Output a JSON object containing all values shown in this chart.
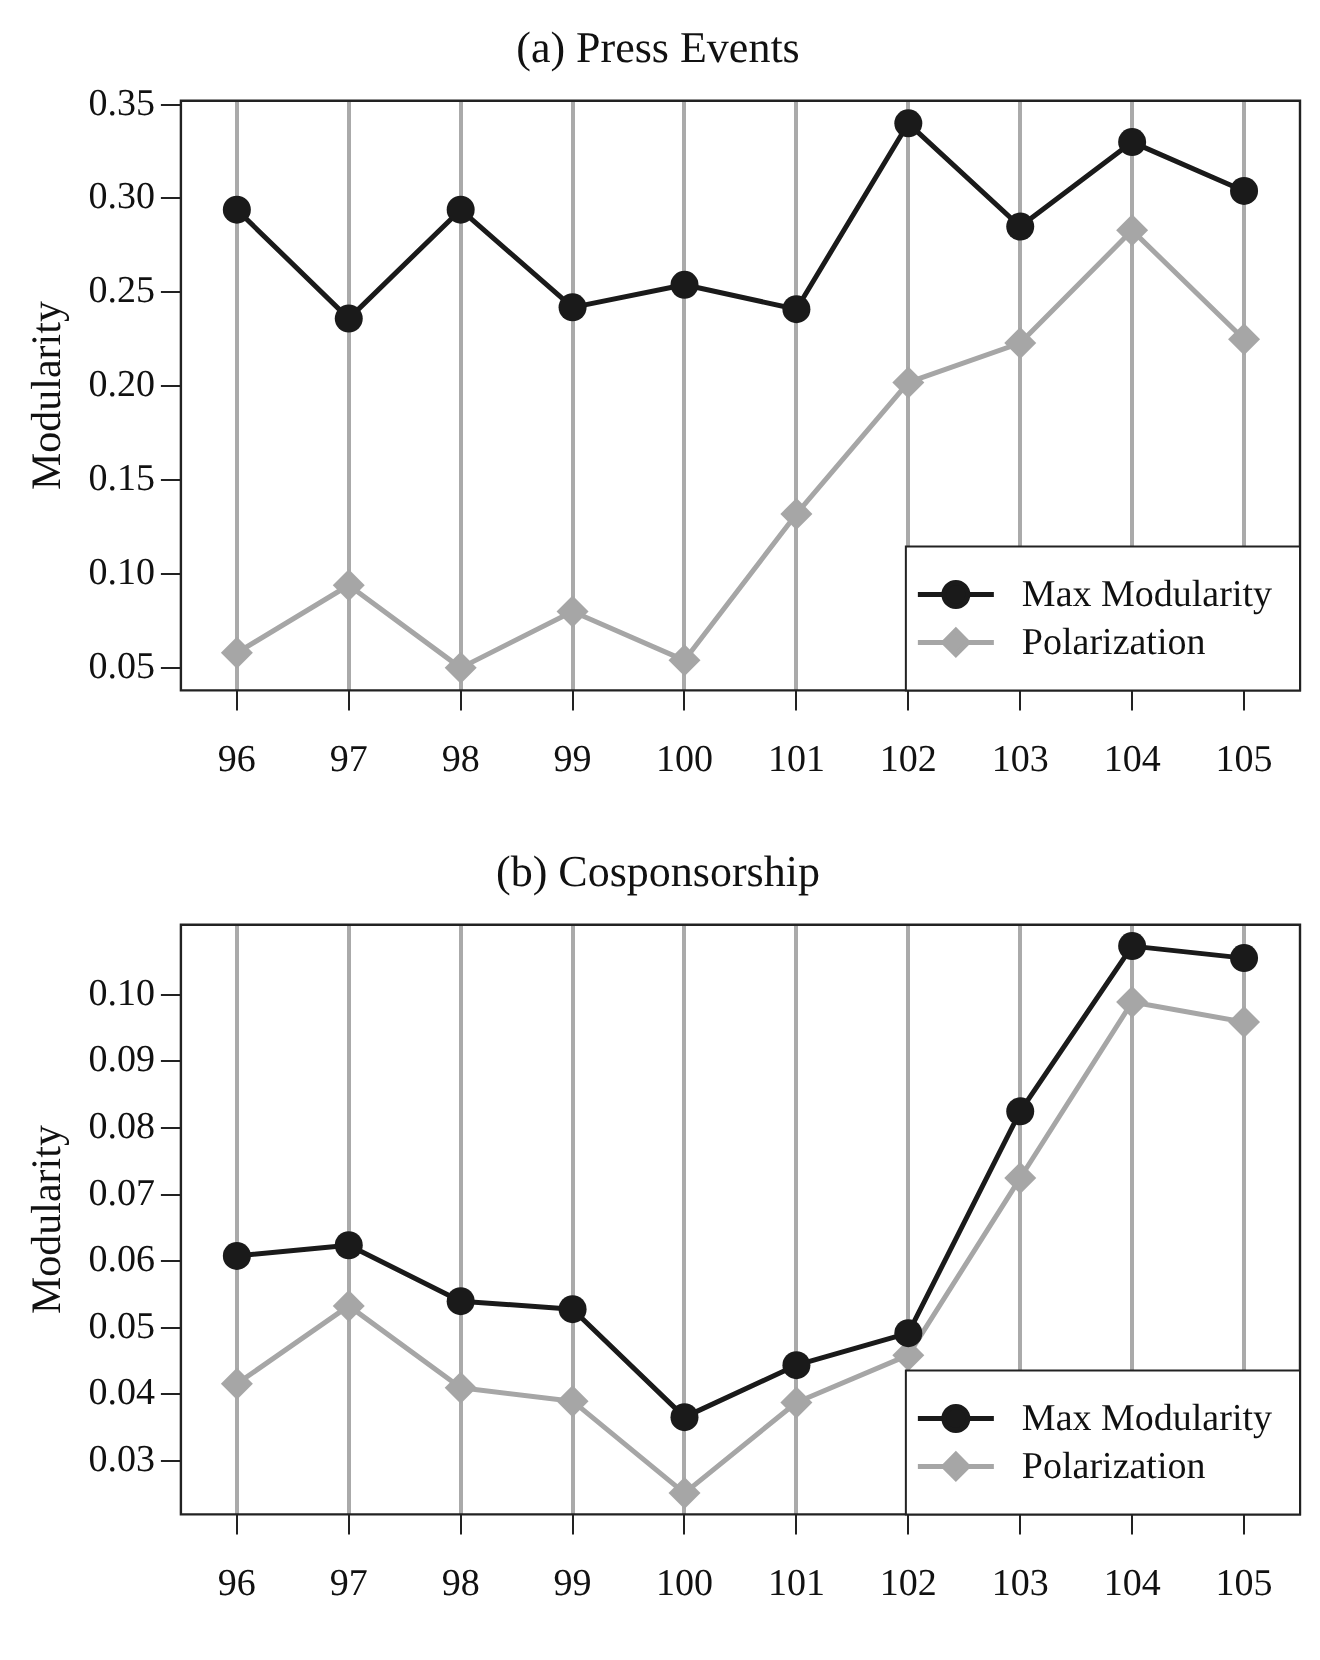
{
  "chart_data": [
    {
      "type": "line",
      "title": "(a) Press Events",
      "ylabel": "Modularity",
      "categories": [
        "96",
        "97",
        "98",
        "99",
        "100",
        "101",
        "102",
        "103",
        "104",
        "105"
      ],
      "series": [
        {
          "name": "Max Modularity",
          "color": "#1a1a1a",
          "marker": "circle",
          "values": [
            0.294,
            0.236,
            0.294,
            0.242,
            0.254,
            0.241,
            0.34,
            0.285,
            0.33,
            0.304
          ]
        },
        {
          "name": "Polarization",
          "color": "#a6a6a6",
          "marker": "diamond",
          "values": [
            0.058,
            0.094,
            0.05,
            0.08,
            0.054,
            0.132,
            0.202,
            0.223,
            0.283,
            0.225
          ]
        }
      ],
      "ylim": [
        0.038,
        0.352
      ],
      "yticks": [
        0.05,
        {
          "value": 0.1,
          "label": "0.10"
        },
        0.15,
        {
          "value": 0.2,
          "label": "0.20"
        },
        0.25,
        {
          "value": 0.3,
          "label": "0.30"
        },
        0.35
      ],
      "grid": "x",
      "legend": "bottom right",
      "line_style": "solid"
    },
    {
      "type": "line",
      "title": "(b) Cosponsorship",
      "ylabel": "Modularity",
      "categories": [
        "96",
        "97",
        "98",
        "99",
        "100",
        "101",
        "102",
        "103",
        "104",
        "105"
      ],
      "series": [
        {
          "name": "Max Modularity",
          "color": "#1a1a1a",
          "marker": "circle",
          "values": [
            0.0608,
            0.0624,
            0.054,
            0.0528,
            0.0366,
            0.0444,
            0.0492,
            0.0825,
            0.1073,
            0.1055
          ]
        },
        {
          "name": "Polarization",
          "color": "#a6a6a6",
          "marker": "diamond",
          "values": [
            0.0416,
            0.0533,
            0.041,
            0.039,
            0.0252,
            0.0388,
            0.0459,
            0.0725,
            0.0989,
            0.0959
          ]
        }
      ],
      "ylim": [
        0.022,
        0.1105
      ],
      "yticks": [
        0.03,
        0.04,
        0.05,
        0.06,
        0.07,
        0.08,
        0.09,
        {
          "value": 0.1,
          "label": "0.10"
        }
      ],
      "grid": "x",
      "legend": "bottom right",
      "line_style": "solid"
    }
  ]
}
